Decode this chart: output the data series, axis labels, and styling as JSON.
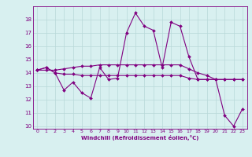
{
  "x": [
    0,
    1,
    2,
    3,
    4,
    5,
    6,
    7,
    8,
    9,
    10,
    11,
    12,
    13,
    14,
    15,
    16,
    17,
    18,
    19,
    20,
    21,
    22,
    23
  ],
  "line1": [
    14.2,
    14.4,
    14.0,
    12.7,
    13.3,
    12.5,
    12.1,
    14.4,
    13.5,
    13.6,
    17.0,
    18.5,
    17.5,
    17.2,
    14.4,
    17.8,
    17.5,
    15.2,
    13.5,
    13.5,
    13.5,
    10.8,
    10.0,
    11.3
  ],
  "line2": [
    14.2,
    14.4,
    14.0,
    13.9,
    13.9,
    13.8,
    13.8,
    13.8,
    13.8,
    13.8,
    13.8,
    13.8,
    13.8,
    13.8,
    13.8,
    13.8,
    13.8,
    13.6,
    13.5,
    13.5,
    13.5,
    13.5,
    13.5,
    13.5
  ],
  "line3": [
    14.2,
    14.2,
    14.2,
    14.3,
    14.4,
    14.5,
    14.5,
    14.6,
    14.6,
    14.6,
    14.6,
    14.6,
    14.6,
    14.6,
    14.6,
    14.6,
    14.6,
    14.3,
    14.0,
    13.8,
    13.5,
    13.5,
    13.5,
    13.5
  ],
  "line_color": "#800080",
  "bg_color": "#d8f0f0",
  "grid_color": "#b8d8d8",
  "xlabel": "Windchill (Refroidissement éolien,°C)",
  "ylim": [
    9.8,
    19.0
  ],
  "xlim": [
    -0.5,
    23.5
  ],
  "yticks": [
    10,
    11,
    12,
    13,
    14,
    15,
    16,
    17,
    18
  ],
  "xticks": [
    0,
    1,
    2,
    3,
    4,
    5,
    6,
    7,
    8,
    9,
    10,
    11,
    12,
    13,
    14,
    15,
    16,
    17,
    18,
    19,
    20,
    21,
    22,
    23
  ]
}
